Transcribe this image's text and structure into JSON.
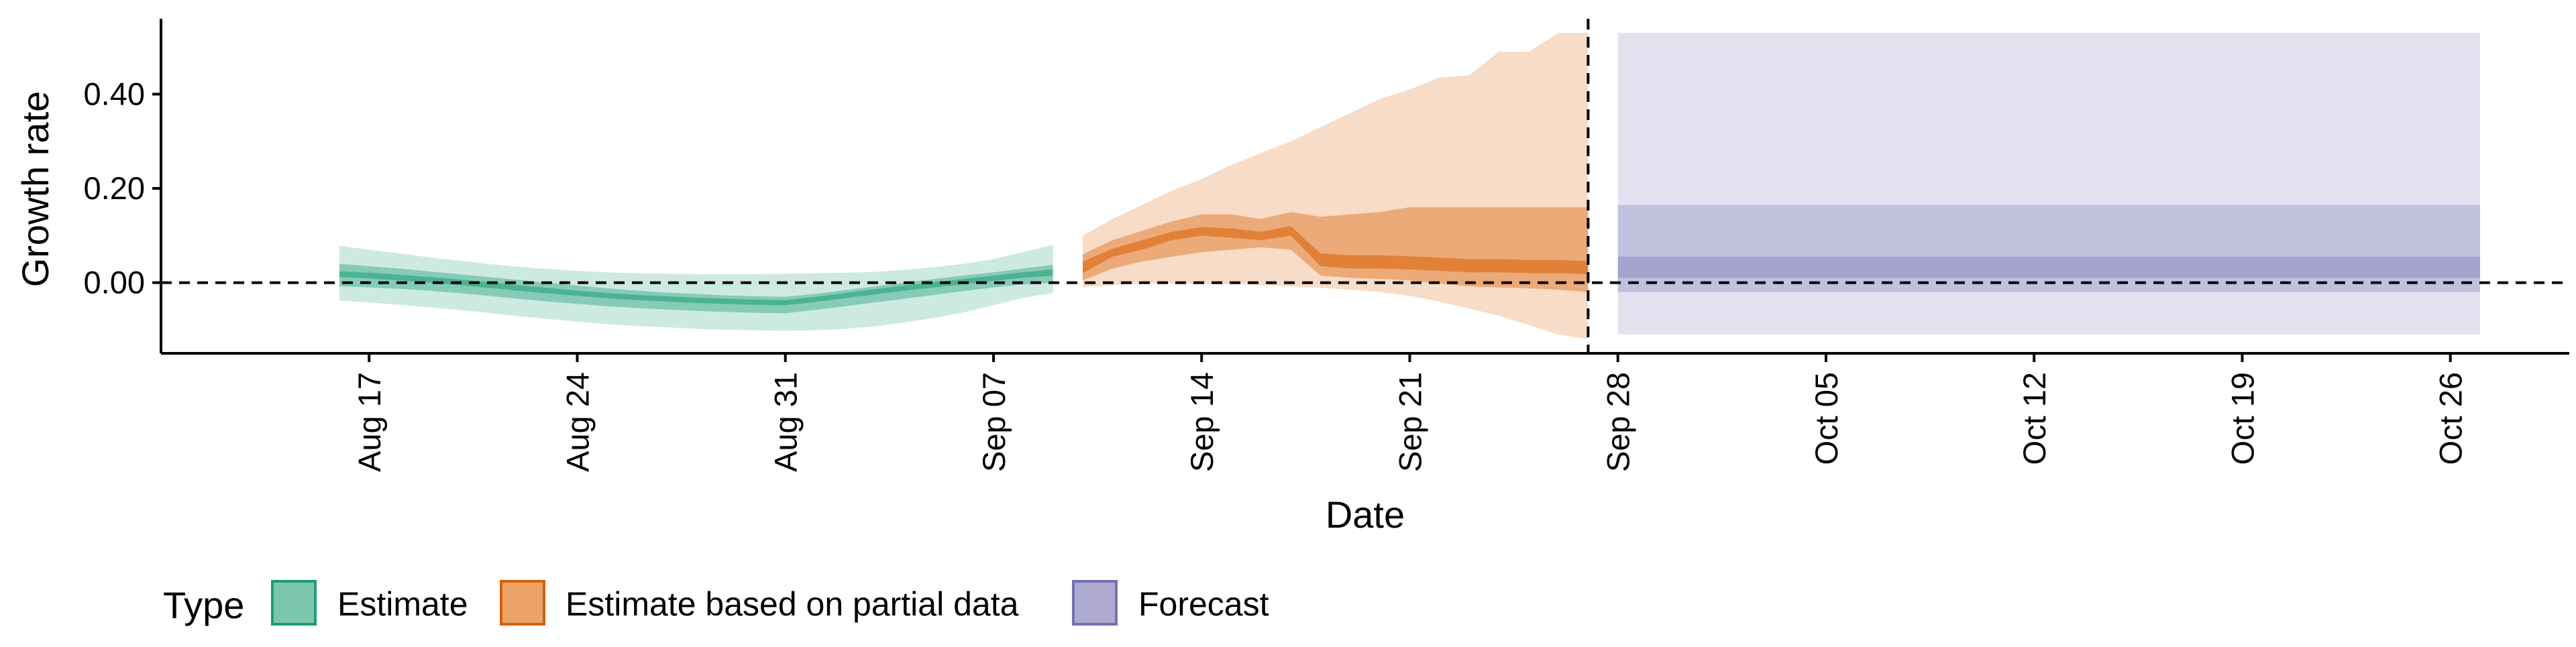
{
  "chart_data": {
    "type": "area",
    "title": "",
    "xlabel": "Date",
    "ylabel": "Growth rate",
    "x_type": "date",
    "xlim": [
      "2020-08-10",
      "2020-10-30"
    ],
    "ylim": [
      -0.15,
      0.56
    ],
    "y_ticks": [
      0.0,
      0.2,
      0.4
    ],
    "y_tick_labels": [
      "0.00",
      "0.20",
      "0.40"
    ],
    "x_ticks": [
      "2020-08-17",
      "2020-08-24",
      "2020-08-31",
      "2020-09-07",
      "2020-09-14",
      "2020-09-21",
      "2020-09-28",
      "2020-10-05",
      "2020-10-12",
      "2020-10-19",
      "2020-10-26"
    ],
    "x_tick_labels": [
      "Aug 17",
      "Aug 24",
      "Aug 31",
      "Sep 07",
      "Sep 14",
      "Sep 21",
      "Sep 28",
      "Oct 05",
      "Oct 12",
      "Oct 19",
      "Oct 26"
    ],
    "hline_y": 0,
    "vline_x": "2020-09-27",
    "grid": false,
    "legend": {
      "title": "Type",
      "position": "bottom-left",
      "items": [
        {
          "label": "Estimate",
          "fill": "#7cc7ab",
          "stroke": "#1b9e77"
        },
        {
          "label": "Estimate based on partial data",
          "fill": "#eba36a",
          "stroke": "#d95f02"
        },
        {
          "label": "Forecast",
          "fill": "#aeaad0",
          "stroke": "#7570b3"
        }
      ]
    },
    "series": [
      {
        "name": "Estimate",
        "color": "#1b9e77",
        "x": [
          "2020-08-16",
          "2020-08-17",
          "2020-08-18",
          "2020-08-19",
          "2020-08-20",
          "2020-08-21",
          "2020-08-22",
          "2020-08-23",
          "2020-08-24",
          "2020-08-25",
          "2020-08-26",
          "2020-08-27",
          "2020-08-28",
          "2020-08-29",
          "2020-08-30",
          "2020-08-31",
          "2020-09-01",
          "2020-09-02",
          "2020-09-03",
          "2020-09-04",
          "2020-09-05",
          "2020-09-06",
          "2020-09-07",
          "2020-09-08",
          "2020-09-09"
        ],
        "bands": [
          {
            "lower": [
              -0.038,
              -0.042,
              -0.047,
              -0.052,
              -0.058,
              -0.064,
              -0.071,
              -0.077,
              -0.083,
              -0.088,
              -0.092,
              -0.095,
              -0.098,
              -0.1,
              -0.101,
              -0.102,
              -0.101,
              -0.098,
              -0.093,
              -0.085,
              -0.075,
              -0.063,
              -0.048,
              -0.032,
              -0.022
            ],
            "upper": [
              0.078,
              0.07,
              0.062,
              0.054,
              0.047,
              0.04,
              0.034,
              0.029,
              0.025,
              0.022,
              0.02,
              0.019,
              0.018,
              0.018,
              0.018,
              0.019,
              0.02,
              0.021,
              0.023,
              0.027,
              0.033,
              0.04,
              0.05,
              0.065,
              0.08
            ]
          },
          {
            "lower": [
              -0.008,
              -0.01,
              -0.013,
              -0.017,
              -0.022,
              -0.028,
              -0.034,
              -0.04,
              -0.045,
              -0.05,
              -0.054,
              -0.057,
              -0.06,
              -0.062,
              -0.064,
              -0.065,
              -0.058,
              -0.05,
              -0.042,
              -0.034,
              -0.026,
              -0.018,
              -0.01,
              -0.004,
              0.0
            ],
            "upper": [
              0.04,
              0.035,
              0.03,
              0.024,
              0.018,
              0.012,
              0.006,
              0.0,
              -0.006,
              -0.012,
              -0.017,
              -0.021,
              -0.024,
              -0.027,
              -0.029,
              -0.03,
              -0.024,
              -0.016,
              -0.008,
              0.0,
              0.008,
              0.015,
              0.022,
              0.03,
              0.038
            ]
          },
          {
            "lower": [
              0.012,
              0.009,
              0.005,
              0.0,
              -0.005,
              -0.011,
              -0.017,
              -0.023,
              -0.028,
              -0.033,
              -0.037,
              -0.04,
              -0.043,
              -0.045,
              -0.047,
              -0.048,
              -0.041,
              -0.033,
              -0.025,
              -0.017,
              -0.01,
              -0.003,
              0.004,
              0.01,
              0.015
            ],
            "upper": [
              0.024,
              0.021,
              0.017,
              0.012,
              0.007,
              0.001,
              -0.005,
              -0.011,
              -0.017,
              -0.022,
              -0.026,
              -0.029,
              -0.032,
              -0.034,
              -0.036,
              -0.037,
              -0.03,
              -0.022,
              -0.014,
              -0.006,
              0.001,
              0.008,
              0.015,
              0.022,
              0.028
            ]
          }
        ]
      },
      {
        "name": "Estimate based on partial data",
        "color": "#d95f02",
        "x": [
          "2020-09-10",
          "2020-09-11",
          "2020-09-12",
          "2020-09-13",
          "2020-09-14",
          "2020-09-15",
          "2020-09-16",
          "2020-09-17",
          "2020-09-18",
          "2020-09-19",
          "2020-09-20",
          "2020-09-21",
          "2020-09-22",
          "2020-09-23",
          "2020-09-24",
          "2020-09-25",
          "2020-09-26",
          "2020-09-27"
        ],
        "bands": [
          {
            "lower": [
              -0.01,
              -0.005,
              -0.002,
              -0.002,
              -0.002,
              -0.003,
              -0.005,
              -0.008,
              -0.011,
              -0.015,
              -0.02,
              -0.028,
              -0.04,
              -0.055,
              -0.07,
              -0.09,
              -0.11,
              -0.12
            ],
            "upper": [
              0.1,
              0.135,
              0.165,
              0.195,
              0.22,
              0.25,
              0.275,
              0.3,
              0.33,
              0.36,
              0.39,
              0.41,
              0.435,
              0.44,
              0.49,
              0.49,
              0.53,
              0.53
            ]
          },
          {
            "lower": [
              0.005,
              0.03,
              0.045,
              0.055,
              0.065,
              0.07,
              0.075,
              0.07,
              0.015,
              0.01,
              0.008,
              0.005,
              -0.002,
              -0.008,
              -0.01,
              -0.012,
              -0.015,
              -0.02
            ],
            "upper": [
              0.06,
              0.09,
              0.11,
              0.13,
              0.145,
              0.145,
              0.135,
              0.15,
              0.14,
              0.145,
              0.15,
              0.16,
              0.16,
              0.16,
              0.16,
              0.16,
              0.16,
              0.16
            ]
          },
          {
            "lower": [
              0.02,
              0.055,
              0.07,
              0.09,
              0.1,
              0.095,
              0.09,
              0.1,
              0.035,
              0.03,
              0.03,
              0.028,
              0.025,
              0.022,
              0.022,
              0.02,
              0.02,
              0.018
            ],
            "upper": [
              0.045,
              0.072,
              0.09,
              0.108,
              0.118,
              0.115,
              0.108,
              0.12,
              0.062,
              0.058,
              0.058,
              0.056,
              0.053,
              0.05,
              0.05,
              0.048,
              0.048,
              0.046
            ]
          }
        ]
      },
      {
        "name": "Forecast",
        "color": "#7570b3",
        "x": [
          "2020-09-28",
          "2020-10-27"
        ],
        "bands": [
          {
            "lower": [
              -0.11,
              -0.11
            ],
            "upper": [
              0.53,
              0.53
            ]
          },
          {
            "lower": [
              -0.02,
              -0.02
            ],
            "upper": [
              0.165,
              0.165
            ]
          },
          {
            "lower": [
              0.01,
              0.01
            ],
            "upper": [
              0.055,
              0.055
            ]
          }
        ]
      }
    ],
    "band_opacities": [
      0.3,
      0.45,
      0.6
    ]
  }
}
